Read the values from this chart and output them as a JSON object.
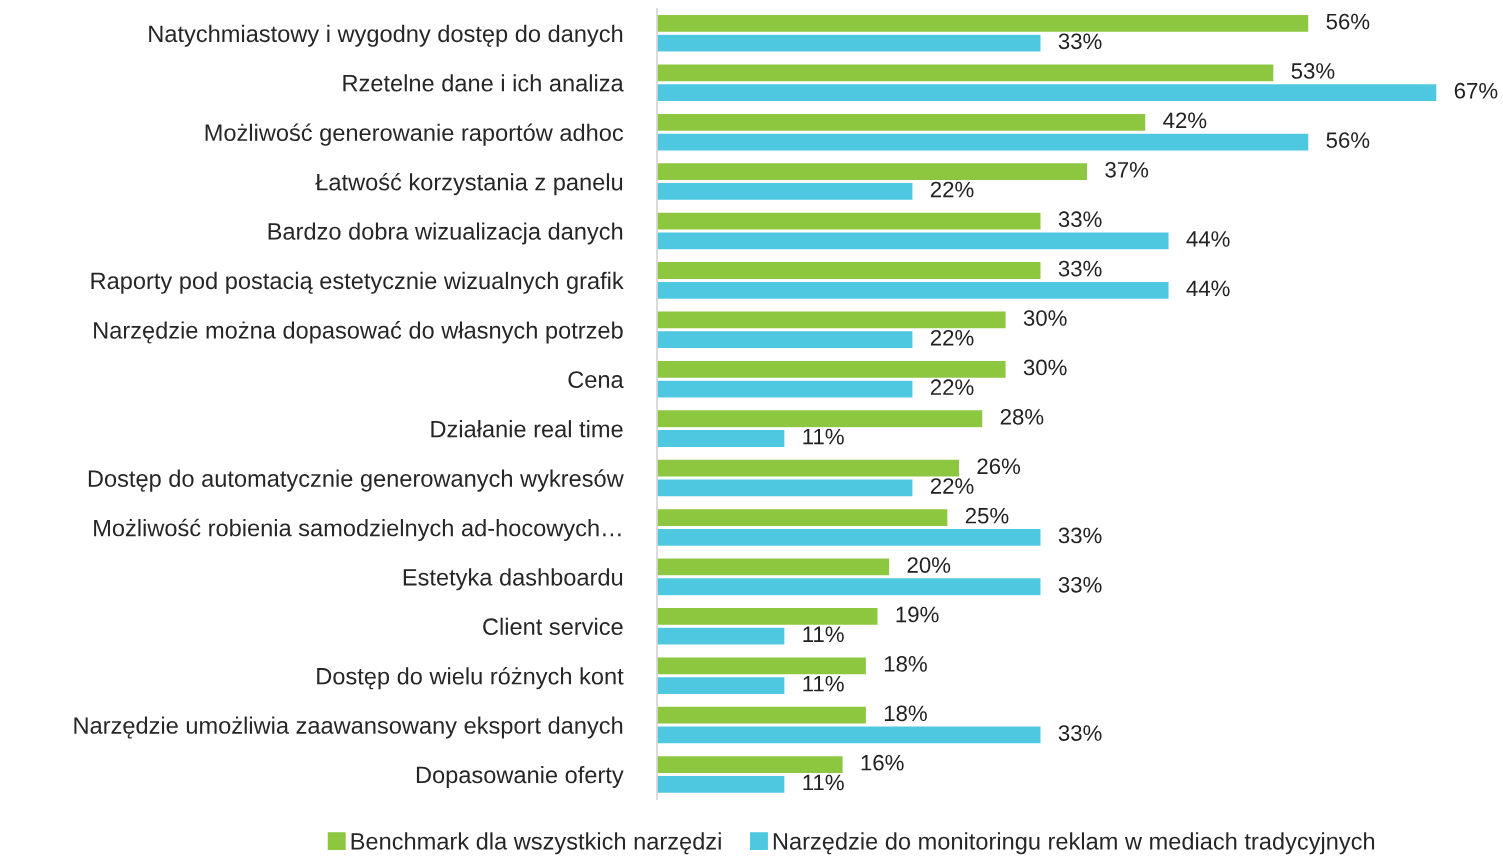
{
  "chart_data": {
    "type": "bar",
    "orientation": "horizontal",
    "legend": "bottom",
    "grid": false,
    "categories": [
      "Natychmiastowy i wygodny dostęp do danych",
      "Rzetelne dane i ich analiza",
      "Możliwość generowanie raportów adhoc",
      "Łatwość korzystania z panelu",
      "Bardzo dobra wizualizacja danych",
      "Raporty pod postacią estetycznie wizualnych grafik",
      "Narzędzie można dopasować do własnych potrzeb",
      "Cena",
      "Działanie real time",
      "Dostęp do automatycznie generowanych wykresów",
      "Możliwość robienia samodzielnych ad-hocowych…",
      "Estetyka dashboardu",
      "Client service",
      "Dostęp do wielu różnych kont",
      "Narzędzie umożliwia zaawansowany eksport danych",
      "Dopasowanie oferty"
    ],
    "series": [
      {
        "name": "Benchmark dla wszystkich narzędzi",
        "color": "#8dc63f",
        "values": [
          56,
          53,
          42,
          37,
          33,
          33,
          30,
          30,
          28,
          26,
          25,
          20,
          19,
          18,
          18,
          16
        ],
        "value_labels": [
          "56%",
          "53%",
          "42%",
          "37%",
          "33%",
          "33%",
          "30%",
          "30%",
          "28%",
          "26%",
          "25%",
          "20%",
          "19%",
          "18%",
          "18%",
          "16%"
        ]
      },
      {
        "name": "Narzędzie do monitoringu reklam w mediach tradycyjnych",
        "color": "#4ec8e0",
        "values": [
          33,
          67,
          56,
          22,
          44,
          44,
          22,
          22,
          11,
          22,
          33,
          33,
          11,
          11,
          33,
          11
        ],
        "value_labels": [
          "33%",
          "67%",
          "56%",
          "22%",
          "44%",
          "44%",
          "22%",
          "22%",
          "11%",
          "22%",
          "33%",
          "33%",
          "11%",
          "11%",
          "33%",
          "11%"
        ]
      }
    ]
  }
}
